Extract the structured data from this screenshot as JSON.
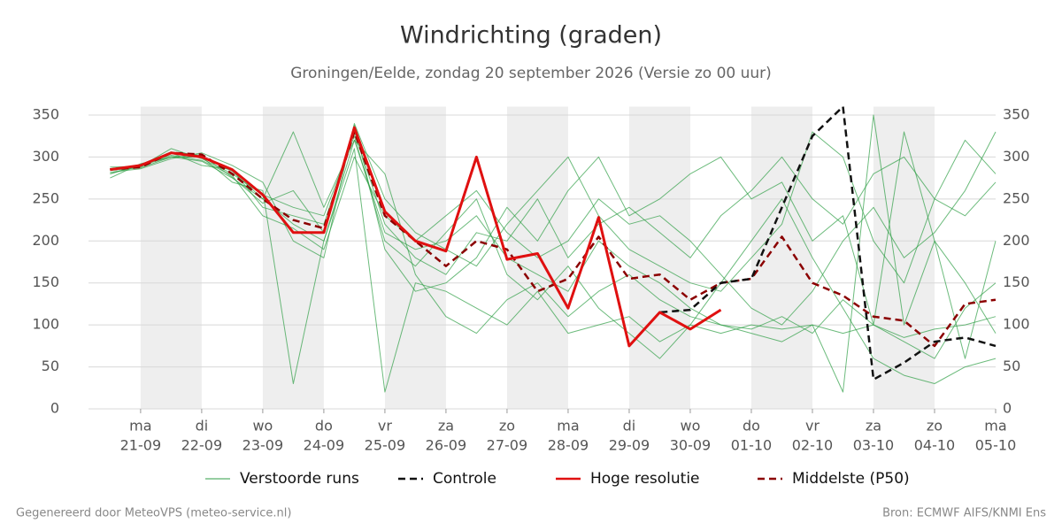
{
  "chart_data": {
    "type": "line",
    "title": "Windrichting (graden)",
    "subtitle": "Groningen/Eelde, zondag 20 september 2026 (Versie zo 00 uur)",
    "footer_left": "Gegenereerd door MeteoVPS (meteo-service.nl)",
    "footer_right": "Bron: ECMWF AIFS/KNMI Ens",
    "xlim": [
      "2026-09-20T07:00",
      "2026-10-05T00:00"
    ],
    "xticks": [
      {
        "value": "2026-09-21T00:00",
        "label": [
          "ma",
          "21-09"
        ]
      },
      {
        "value": "2026-09-22T00:00",
        "label": [
          "di",
          "22-09"
        ]
      },
      {
        "value": "2026-09-23T00:00",
        "label": [
          "wo",
          "23-09"
        ]
      },
      {
        "value": "2026-09-24T00:00",
        "label": [
          "do",
          "24-09"
        ]
      },
      {
        "value": "2026-09-25T00:00",
        "label": [
          "vr",
          "25-09"
        ]
      },
      {
        "value": "2026-09-26T00:00",
        "label": [
          "za",
          "26-09"
        ]
      },
      {
        "value": "2026-09-27T00:00",
        "label": [
          "zo",
          "27-09"
        ]
      },
      {
        "value": "2026-09-28T00:00",
        "label": [
          "ma",
          "28-09"
        ]
      },
      {
        "value": "2026-09-29T00:00",
        "label": [
          "di",
          "29-09"
        ]
      },
      {
        "value": "2026-09-30T00:00",
        "label": [
          "wo",
          "30-09"
        ]
      },
      {
        "value": "2026-10-01T00:00",
        "label": [
          "do",
          "01-10"
        ]
      },
      {
        "value": "2026-10-02T00:00",
        "label": [
          "vr",
          "02-10"
        ]
      },
      {
        "value": "2026-10-03T00:00",
        "label": [
          "za",
          "03-10"
        ]
      },
      {
        "value": "2026-10-04T00:00",
        "label": [
          "zo",
          "04-10"
        ]
      },
      {
        "value": "2026-10-05T00:00",
        "label": [
          "ma",
          "05-10"
        ]
      }
    ],
    "ylim": [
      0,
      360
    ],
    "yticks": [
      0,
      50,
      100,
      150,
      200,
      250,
      300,
      350
    ],
    "grid": true,
    "legend": "bottom",
    "x": [
      "2026-09-20T12:00",
      "2026-09-21T00:00",
      "2026-09-21T12:00",
      "2026-09-22T00:00",
      "2026-09-22T12:00",
      "2026-09-23T00:00",
      "2026-09-23T12:00",
      "2026-09-24T00:00",
      "2026-09-24T12:00",
      "2026-09-25T00:00",
      "2026-09-25T12:00",
      "2026-09-26T00:00",
      "2026-09-26T12:00",
      "2026-09-27T00:00",
      "2026-09-27T12:00",
      "2026-09-28T00:00",
      "2026-09-28T12:00",
      "2026-09-29T00:00",
      "2026-09-29T12:00",
      "2026-09-30T00:00",
      "2026-09-30T12:00",
      "2026-10-01T00:00",
      "2026-10-01T12:00",
      "2026-10-02T00:00",
      "2026-10-02T12:00",
      "2026-10-03T00:00",
      "2026-10-03T12:00",
      "2026-10-04T00:00",
      "2026-10-04T12:00",
      "2026-10-05T00:00"
    ],
    "ensemble": {
      "name": "Verstoorde runs",
      "color": "#2e9e45",
      "members": [
        [
          280,
          290,
          300,
          295,
          275,
          250,
          220,
          200,
          320,
          210,
          190,
          200,
          230,
          180,
          160,
          140,
          200,
          170,
          150,
          120,
          100,
          95,
          110,
          90,
          130,
          100,
          80,
          60,
          120,
          150
        ],
        [
          285,
          288,
          305,
          290,
          285,
          240,
          230,
          220,
          330,
          220,
          180,
          160,
          210,
          200,
          250,
          180,
          220,
          240,
          210,
          180,
          230,
          260,
          300,
          250,
          220,
          280,
          300,
          250,
          230,
          270
        ],
        [
          275,
          292,
          300,
          300,
          270,
          260,
          30,
          200,
          310,
          20,
          150,
          140,
          120,
          100,
          140,
          90,
          100,
          110,
          80,
          100,
          90,
          100,
          95,
          100,
          90,
          100,
          85,
          95,
          100,
          110
        ],
        [
          282,
          286,
          298,
          305,
          290,
          270,
          200,
          180,
          340,
          250,
          210,
          190,
          170,
          220,
          260,
          300,
          230,
          190,
          170,
          150,
          140,
          180,
          220,
          330,
          300,
          200,
          150,
          250,
          320,
          280
        ],
        [
          288,
          289,
          310,
          298,
          280,
          255,
          240,
          230,
          325,
          200,
          170,
          210,
          250,
          160,
          130,
          170,
          120,
          90,
          60,
          100,
          150,
          200,
          250,
          180,
          120,
          60,
          40,
          30,
          50,
          60
        ],
        [
          280,
          291,
          302,
          296,
          278,
          230,
          215,
          190,
          300,
          230,
          200,
          230,
          260,
          210,
          180,
          200,
          250,
          220,
          230,
          200,
          160,
          120,
          100,
          140,
          200,
          240,
          180,
          210,
          260,
          330
        ],
        [
          284,
          287,
          300,
          300,
          283,
          250,
          330,
          240,
          320,
          280,
          160,
          110,
          90,
          130,
          150,
          110,
          140,
          160,
          130,
          110,
          100,
          90,
          80,
          100,
          20,
          350,
          100,
          200,
          150,
          90
        ],
        [
          286,
          290,
          306,
          302,
          276,
          245,
          260,
          210,
          338,
          190,
          140,
          150,
          180,
          240,
          200,
          260,
          300,
          230,
          250,
          280,
          300,
          250,
          270,
          200,
          230,
          100,
          330,
          200,
          60,
          200
        ]
      ]
    },
    "series": [
      {
        "name": "Controle",
        "color": "#111111",
        "dashed": true,
        "values": [
          285,
          290,
          305,
          300,
          285,
          255,
          210,
          210,
          335,
          235,
          200,
          188,
          300,
          178,
          185,
          120,
          228,
          75,
          115,
          118,
          150,
          155,
          240,
          325,
          360,
          35,
          55,
          80,
          85,
          75
        ]
      },
      {
        "name": "Hoge resolutie",
        "color": "#e01010",
        "dashed": false,
        "values": [
          285,
          290,
          305,
          300,
          285,
          255,
          210,
          210,
          335,
          235,
          200,
          188,
          300,
          178,
          185,
          120,
          228,
          75,
          115,
          95,
          118,
          null,
          null,
          null,
          null,
          null,
          null,
          null,
          null,
          null
        ]
      },
      {
        "name": "Middelste (P50)",
        "color": "#8b0000",
        "dashed": true,
        "values": [
          285,
          288,
          305,
          303,
          280,
          250,
          225,
          215,
          330,
          230,
          200,
          170,
          200,
          190,
          140,
          155,
          205,
          155,
          160,
          130,
          150,
          155,
          205,
          150,
          135,
          110,
          105,
          75,
          125,
          130
        ]
      }
    ]
  }
}
